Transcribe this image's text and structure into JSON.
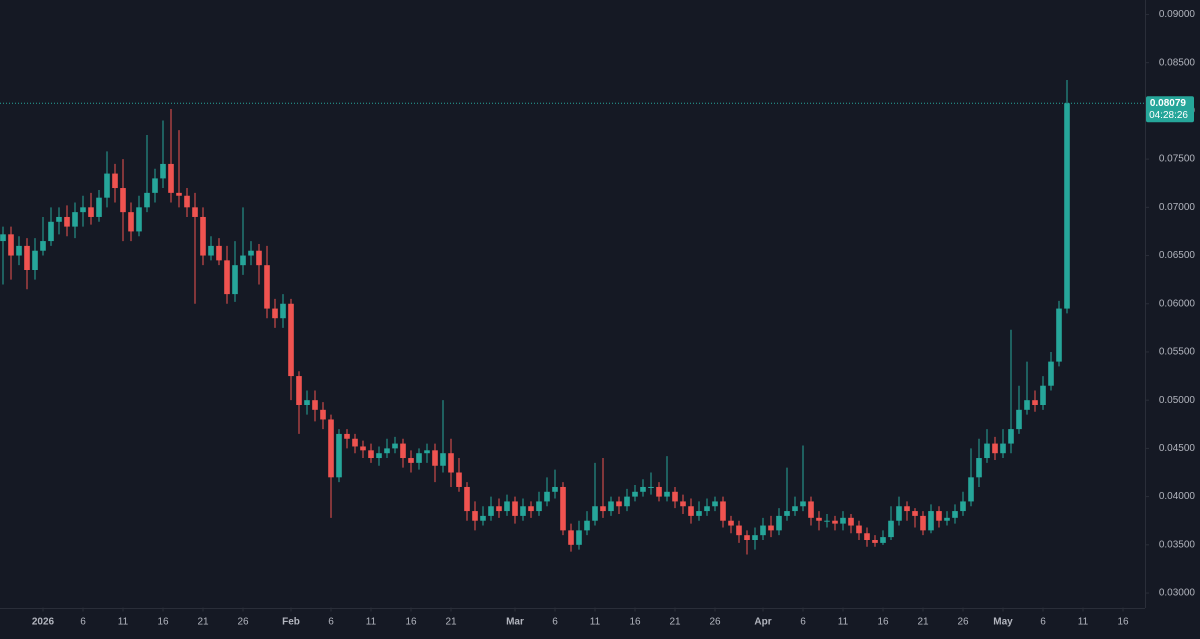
{
  "chart_data": {
    "type": "candlestick",
    "up_color": "#26a69a",
    "down_color": "#ef5350",
    "x": [
      "2025-12-27",
      "2025-12-28",
      "2025-12-29",
      "2025-12-30",
      "2025-12-31",
      "2026-01-01",
      "2026-01-02",
      "2026-01-03",
      "2026-01-04",
      "2026-01-05",
      "2026-01-06",
      "2026-01-07",
      "2026-01-08",
      "2026-01-09",
      "2026-01-10",
      "2026-01-11",
      "2026-01-12",
      "2026-01-13",
      "2026-01-14",
      "2026-01-15",
      "2026-01-16",
      "2026-01-17",
      "2026-01-18",
      "2026-01-19",
      "2026-01-20",
      "2026-01-21",
      "2026-01-22",
      "2026-01-23",
      "2026-01-24",
      "2026-01-25",
      "2026-01-26",
      "2026-01-27",
      "2026-01-28",
      "2026-01-29",
      "2026-01-30",
      "2026-01-31",
      "2026-02-01",
      "2026-02-02",
      "2026-02-03",
      "2026-02-04",
      "2026-02-05",
      "2026-02-06",
      "2026-02-07",
      "2026-02-08",
      "2026-02-09",
      "2026-02-10",
      "2026-02-11",
      "2026-02-12",
      "2026-02-13",
      "2026-02-14",
      "2026-02-15",
      "2026-02-16",
      "2026-02-17",
      "2026-02-18",
      "2026-02-19",
      "2026-02-20",
      "2026-02-21",
      "2026-02-22",
      "2026-02-23",
      "2026-02-24",
      "2026-02-25",
      "2026-02-26",
      "2026-02-27",
      "2026-02-28",
      "2026-03-01",
      "2026-03-02",
      "2026-03-03",
      "2026-03-04",
      "2026-03-05",
      "2026-03-06",
      "2026-03-07",
      "2026-03-08",
      "2026-03-09",
      "2026-03-10",
      "2026-03-11",
      "2026-03-12",
      "2026-03-13",
      "2026-03-14",
      "2026-03-15",
      "2026-03-16",
      "2026-03-17",
      "2026-03-18",
      "2026-03-19",
      "2026-03-20",
      "2026-03-21",
      "2026-03-22",
      "2026-03-23",
      "2026-03-24",
      "2026-03-25",
      "2026-03-26",
      "2026-03-27",
      "2026-03-28",
      "2026-03-29",
      "2026-03-30",
      "2026-03-31",
      "2026-04-01",
      "2026-04-02",
      "2026-04-03",
      "2026-04-04",
      "2026-04-05",
      "2026-04-06",
      "2026-04-07",
      "2026-04-08",
      "2026-04-09",
      "2026-04-10",
      "2026-04-11",
      "2026-04-12",
      "2026-04-13",
      "2026-04-14",
      "2026-04-15",
      "2026-04-16",
      "2026-04-17",
      "2026-04-18",
      "2026-04-19",
      "2026-04-20",
      "2026-04-21",
      "2026-04-22",
      "2026-04-23",
      "2026-04-24",
      "2026-04-25",
      "2026-04-26",
      "2026-04-27",
      "2026-04-28",
      "2026-04-29",
      "2026-04-30",
      "2026-05-01",
      "2026-05-02",
      "2026-05-03",
      "2026-05-04",
      "2026-05-05",
      "2026-05-06",
      "2026-05-07",
      "2026-05-08",
      "2026-05-09"
    ],
    "open": [
      0.0665,
      0.0672,
      0.065,
      0.066,
      0.0635,
      0.0655,
      0.0665,
      0.0685,
      0.069,
      0.068,
      0.0695,
      0.07,
      0.069,
      0.071,
      0.0735,
      0.072,
      0.0695,
      0.0675,
      0.07,
      0.0715,
      0.073,
      0.0745,
      0.0715,
      0.0712,
      0.07,
      0.069,
      0.065,
      0.066,
      0.0645,
      0.061,
      0.064,
      0.065,
      0.0655,
      0.064,
      0.0595,
      0.0585,
      0.06,
      0.0525,
      0.0495,
      0.05,
      0.049,
      0.048,
      0.042,
      0.0465,
      0.046,
      0.0452,
      0.0448,
      0.044,
      0.0445,
      0.045,
      0.0455,
      0.044,
      0.0435,
      0.0445,
      0.0448,
      0.0432,
      0.0445,
      0.0425,
      0.041,
      0.0385,
      0.0375,
      0.038,
      0.039,
      0.0385,
      0.0395,
      0.038,
      0.039,
      0.0385,
      0.0395,
      0.0405,
      0.041,
      0.0365,
      0.035,
      0.0365,
      0.0375,
      0.039,
      0.0385,
      0.0395,
      0.039,
      0.04,
      0.0405,
      0.041,
      0.041,
      0.04,
      0.0405,
      0.0395,
      0.039,
      0.038,
      0.0385,
      0.039,
      0.0395,
      0.0375,
      0.037,
      0.036,
      0.0355,
      0.036,
      0.037,
      0.0365,
      0.038,
      0.0385,
      0.039,
      0.0395,
      0.0378,
      0.0375,
      0.0375,
      0.0372,
      0.0378,
      0.037,
      0.0362,
      0.0355,
      0.0352,
      0.0358,
      0.0375,
      0.039,
      0.0385,
      0.038,
      0.0365,
      0.0385,
      0.0375,
      0.0378,
      0.0385,
      0.0395,
      0.042,
      0.044,
      0.0455,
      0.0445,
      0.0455,
      0.047,
      0.049,
      0.05,
      0.0495,
      0.0515,
      0.054,
      0.0595
    ],
    "high": [
      0.068,
      0.068,
      0.067,
      0.0668,
      0.0668,
      0.069,
      0.07,
      0.07,
      0.0702,
      0.0705,
      0.0712,
      0.0715,
      0.0718,
      0.0758,
      0.0745,
      0.075,
      0.0705,
      0.0712,
      0.0775,
      0.074,
      0.079,
      0.0802,
      0.078,
      0.072,
      0.0715,
      0.07,
      0.067,
      0.0668,
      0.066,
      0.0665,
      0.07,
      0.0665,
      0.0662,
      0.066,
      0.0605,
      0.061,
      0.0605,
      0.053,
      0.051,
      0.051,
      0.0498,
      0.0485,
      0.047,
      0.047,
      0.0465,
      0.0458,
      0.0455,
      0.0452,
      0.046,
      0.0462,
      0.046,
      0.0448,
      0.045,
      0.0455,
      0.0455,
      0.05,
      0.046,
      0.044,
      0.0415,
      0.0395,
      0.039,
      0.04,
      0.0398,
      0.0402,
      0.04,
      0.0398,
      0.0395,
      0.0405,
      0.042,
      0.0428,
      0.0415,
      0.0372,
      0.0375,
      0.0385,
      0.0435,
      0.044,
      0.04,
      0.04,
      0.0408,
      0.0412,
      0.0418,
      0.0425,
      0.0415,
      0.0442,
      0.041,
      0.0402,
      0.0398,
      0.0395,
      0.0398,
      0.04,
      0.04,
      0.038,
      0.0375,
      0.0365,
      0.0368,
      0.0378,
      0.038,
      0.0388,
      0.043,
      0.04,
      0.0453,
      0.04,
      0.0385,
      0.0382,
      0.038,
      0.0385,
      0.0382,
      0.0375,
      0.0368,
      0.036,
      0.0365,
      0.039,
      0.04,
      0.0395,
      0.0388,
      0.0385,
      0.0392,
      0.039,
      0.0385,
      0.0392,
      0.0405,
      0.045,
      0.046,
      0.047,
      0.0462,
      0.047,
      0.0573,
      0.0515,
      0.054,
      0.051,
      0.0525,
      0.055,
      0.0603,
      0.0832
    ],
    "low": [
      0.062,
      0.0625,
      0.064,
      0.0615,
      0.0625,
      0.065,
      0.066,
      0.0672,
      0.067,
      0.0668,
      0.068,
      0.0682,
      0.0685,
      0.07,
      0.0705,
      0.0665,
      0.0665,
      0.067,
      0.0695,
      0.0705,
      0.072,
      0.0705,
      0.07,
      0.069,
      0.06,
      0.064,
      0.0645,
      0.064,
      0.06,
      0.0602,
      0.063,
      0.064,
      0.062,
      0.0585,
      0.0575,
      0.0575,
      0.05,
      0.0465,
      0.0485,
      0.0478,
      0.047,
      0.0378,
      0.0415,
      0.045,
      0.0445,
      0.044,
      0.0435,
      0.0432,
      0.044,
      0.0445,
      0.043,
      0.0425,
      0.0428,
      0.0435,
      0.0415,
      0.0425,
      0.041,
      0.0405,
      0.0375,
      0.0365,
      0.037,
      0.0375,
      0.0378,
      0.038,
      0.0372,
      0.0375,
      0.0378,
      0.038,
      0.039,
      0.0398,
      0.036,
      0.0343,
      0.0345,
      0.036,
      0.037,
      0.0378,
      0.038,
      0.0382,
      0.0385,
      0.0395,
      0.04,
      0.0402,
      0.0395,
      0.0395,
      0.0388,
      0.0382,
      0.0372,
      0.0375,
      0.038,
      0.0385,
      0.0368,
      0.0362,
      0.0352,
      0.034,
      0.0345,
      0.0355,
      0.0358,
      0.036,
      0.0375,
      0.038,
      0.0385,
      0.037,
      0.0365,
      0.0368,
      0.0365,
      0.0365,
      0.0362,
      0.0355,
      0.0348,
      0.0348,
      0.035,
      0.0355,
      0.037,
      0.0375,
      0.0368,
      0.036,
      0.0362,
      0.0368,
      0.037,
      0.0372,
      0.038,
      0.039,
      0.041,
      0.0435,
      0.0438,
      0.044,
      0.0445,
      0.0465,
      0.0485,
      0.0488,
      0.049,
      0.051,
      0.0535,
      0.059
    ],
    "close": [
      0.0672,
      0.065,
      0.066,
      0.0635,
      0.0655,
      0.0665,
      0.0685,
      0.069,
      0.068,
      0.0695,
      0.07,
      0.069,
      0.071,
      0.0735,
      0.072,
      0.0695,
      0.0675,
      0.07,
      0.0715,
      0.073,
      0.0745,
      0.0715,
      0.0712,
      0.07,
      0.069,
      0.065,
      0.066,
      0.0645,
      0.061,
      0.064,
      0.065,
      0.0655,
      0.064,
      0.0595,
      0.0585,
      0.06,
      0.0525,
      0.0495,
      0.05,
      0.049,
      0.048,
      0.042,
      0.0465,
      0.046,
      0.0452,
      0.0448,
      0.044,
      0.0445,
      0.045,
      0.0455,
      0.044,
      0.0435,
      0.0445,
      0.0448,
      0.0432,
      0.0445,
      0.0425,
      0.041,
      0.0385,
      0.0375,
      0.038,
      0.039,
      0.0385,
      0.0395,
      0.038,
      0.039,
      0.0385,
      0.0395,
      0.0405,
      0.041,
      0.0365,
      0.035,
      0.0365,
      0.0375,
      0.039,
      0.0385,
      0.0395,
      0.039,
      0.04,
      0.0405,
      0.041,
      0.041,
      0.04,
      0.0405,
      0.0395,
      0.039,
      0.038,
      0.0385,
      0.039,
      0.0395,
      0.0375,
      0.037,
      0.036,
      0.0355,
      0.036,
      0.037,
      0.0365,
      0.038,
      0.0385,
      0.039,
      0.0395,
      0.0378,
      0.0375,
      0.0375,
      0.0372,
      0.0378,
      0.037,
      0.0362,
      0.0355,
      0.0352,
      0.0358,
      0.0375,
      0.039,
      0.0385,
      0.038,
      0.0365,
      0.0385,
      0.0375,
      0.0378,
      0.0385,
      0.0395,
      0.042,
      0.044,
      0.0455,
      0.0445,
      0.0455,
      0.047,
      0.049,
      0.05,
      0.0495,
      0.0515,
      0.054,
      0.0595,
      0.08079
    ],
    "countdown": "04:28:26",
    "xlim": [
      "2025-12-27",
      "2026-05-18"
    ],
    "xticks": [
      {
        "value": "2026-01-01",
        "label": "2026"
      },
      {
        "value": "2026-01-06",
        "label": "6"
      },
      {
        "value": "2026-01-11",
        "label": "11"
      },
      {
        "value": "2026-01-16",
        "label": "16"
      },
      {
        "value": "2026-01-21",
        "label": "21"
      },
      {
        "value": "2026-01-26",
        "label": "26"
      },
      {
        "value": "2026-02-01",
        "label": "Feb"
      },
      {
        "value": "2026-02-06",
        "label": "6"
      },
      {
        "value": "2026-02-11",
        "label": "11"
      },
      {
        "value": "2026-02-16",
        "label": "16"
      },
      {
        "value": "2026-02-21",
        "label": "21"
      },
      {
        "value": "2026-03-01",
        "label": "Mar"
      },
      {
        "value": "2026-03-06",
        "label": "6"
      },
      {
        "value": "2026-03-11",
        "label": "11"
      },
      {
        "value": "2026-03-16",
        "label": "16"
      },
      {
        "value": "2026-03-21",
        "label": "21"
      },
      {
        "value": "2026-03-26",
        "label": "26"
      },
      {
        "value": "2026-04-01",
        "label": "Apr"
      },
      {
        "value": "2026-04-06",
        "label": "6"
      },
      {
        "value": "2026-04-11",
        "label": "11"
      },
      {
        "value": "2026-04-16",
        "label": "16"
      },
      {
        "value": "2026-04-21",
        "label": "21"
      },
      {
        "value": "2026-04-26",
        "label": "26"
      },
      {
        "value": "2026-05-01",
        "label": "May"
      },
      {
        "value": "2026-05-06",
        "label": "6"
      },
      {
        "value": "2026-05-11",
        "label": "11"
      },
      {
        "value": "2026-05-16",
        "label": "16"
      }
    ],
    "ylim": [
      0.0285,
      0.0915
    ],
    "yticks": [
      {
        "value": 0.03,
        "label": "0.03000"
      },
      {
        "value": 0.035,
        "label": "0.03500"
      },
      {
        "value": 0.04,
        "label": "0.04000"
      },
      {
        "value": 0.045,
        "label": "0.04500"
      },
      {
        "value": 0.05,
        "label": "0.05000"
      },
      {
        "value": 0.055,
        "label": "0.05500"
      },
      {
        "value": 0.06,
        "label": "0.06000"
      },
      {
        "value": 0.065,
        "label": "0.06500"
      },
      {
        "value": 0.07,
        "label": "0.07000"
      },
      {
        "value": 0.075,
        "label": "0.07500"
      },
      {
        "value": 0.08,
        "label": "0.08000"
      },
      {
        "value": 0.085,
        "label": "0.08500"
      },
      {
        "value": 0.09,
        "label": "0.09000"
      }
    ]
  }
}
